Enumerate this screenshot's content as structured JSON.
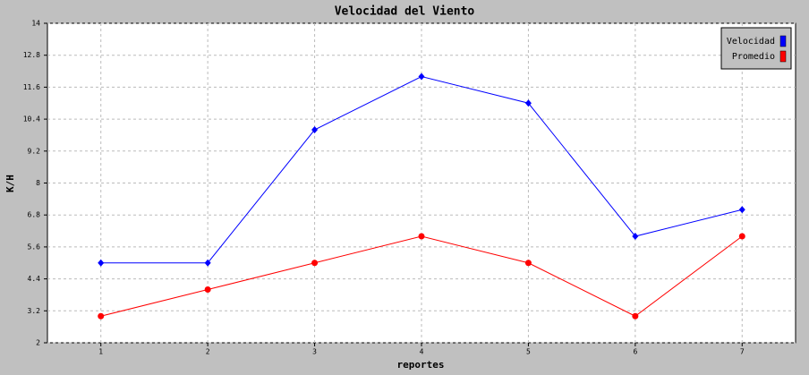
{
  "chart_data": {
    "type": "line",
    "title": "Velocidad del Viento",
    "x_label": "reportes",
    "y_label": "K/H",
    "x": [
      1,
      2,
      3,
      4,
      5,
      6,
      7
    ],
    "xlim": [
      0.5,
      7.5
    ],
    "xticks": [
      1,
      2,
      3,
      4,
      5,
      6,
      7
    ],
    "ylim": [
      2,
      14
    ],
    "yticks": [
      2,
      3.2,
      4.4,
      5.6,
      6.8,
      8,
      9.2,
      10.4,
      11.6,
      12.8,
      14
    ],
    "grid": true,
    "legend": "upper right",
    "series": [
      {
        "name": "Velocidad",
        "color": "#0000ff",
        "marker": "diamond",
        "values": [
          5,
          5,
          10,
          12,
          11,
          6,
          7
        ]
      },
      {
        "name": "Promedio",
        "color": "#ff0000",
        "marker": "circle",
        "values": [
          3,
          4,
          5,
          6,
          5,
          3,
          6
        ]
      }
    ]
  }
}
